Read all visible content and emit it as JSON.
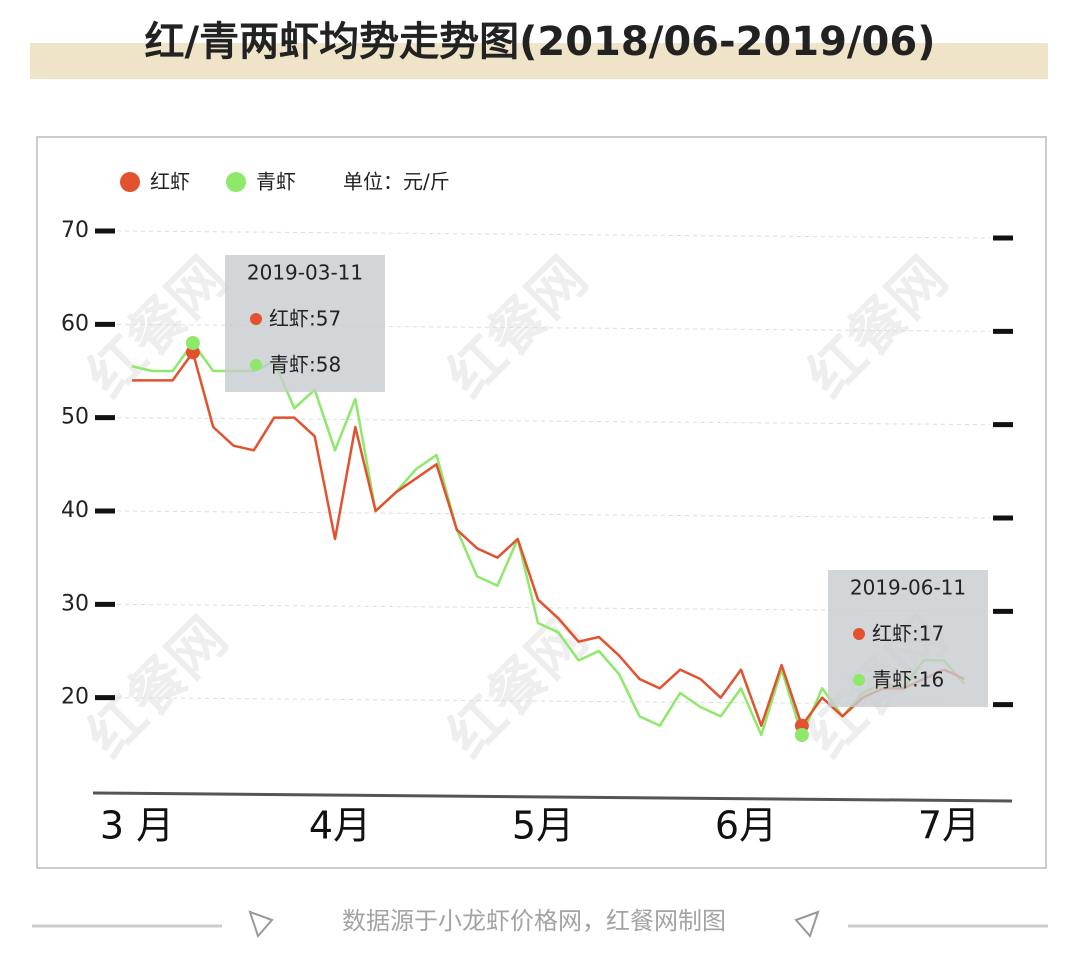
{
  "chart_data": {
    "type": "line",
    "title": "红/青两虾均势走势图(2018/06-2019/06)",
    "unit": "单位：元/斤",
    "source": "数据源于小龙虾价格网，红餐网制图",
    "watermark": "红餐网",
    "categories": [
      "3 月",
      null,
      null,
      null,
      null,
      null,
      null,
      null,
      null,
      null,
      "4月",
      null,
      null,
      null,
      null,
      null,
      null,
      null,
      null,
      null,
      "5月",
      null,
      null,
      null,
      null,
      null,
      null,
      null,
      null,
      null,
      "6月",
      null,
      null,
      null,
      null,
      null,
      null,
      null,
      null,
      null,
      "7月",
      null
    ],
    "series": [
      {
        "name": "红虾",
        "color": "#e2522f",
        "values": [
          54,
          54,
          54,
          57,
          49,
          47,
          46.5,
          50,
          50,
          48,
          37,
          49,
          40,
          42,
          43.5,
          45,
          38,
          36,
          35,
          37,
          30.5,
          28.5,
          26,
          26.5,
          24.5,
          22,
          21,
          23,
          22,
          20,
          23,
          17,
          23.5,
          17,
          20,
          18,
          20,
          21,
          21,
          22,
          23,
          22
        ]
      },
      {
        "name": "青虾",
        "color": "#8ee86a",
        "values": [
          55.5,
          55,
          55,
          58,
          55,
          55,
          55,
          56,
          51,
          53,
          46.5,
          52,
          40,
          42,
          44.5,
          46,
          38,
          33,
          32,
          37,
          28,
          27,
          24,
          25,
          22.5,
          18,
          17,
          20.5,
          19,
          18,
          21,
          16,
          23,
          16,
          21,
          18,
          20.5,
          21.5,
          21,
          24,
          24,
          21.5
        ]
      }
    ],
    "ylim": [
      10,
      70
    ],
    "yticks": [
      20,
      30,
      40,
      50,
      60,
      70
    ],
    "grid": true,
    "tooltips": [
      {
        "date": "2019-03-11",
        "items": [
          {
            "value": 57,
            "value_label": "红虾:57"
          },
          {
            "value": 58,
            "value_label": "青虾:58"
          }
        ]
      },
      {
        "date": "2019-06-11",
        "items": [
          {
            "value": 17,
            "value_label": "红虾:17"
          },
          {
            "value": 16,
            "value_label": "青虾:16"
          }
        ]
      }
    ]
  }
}
